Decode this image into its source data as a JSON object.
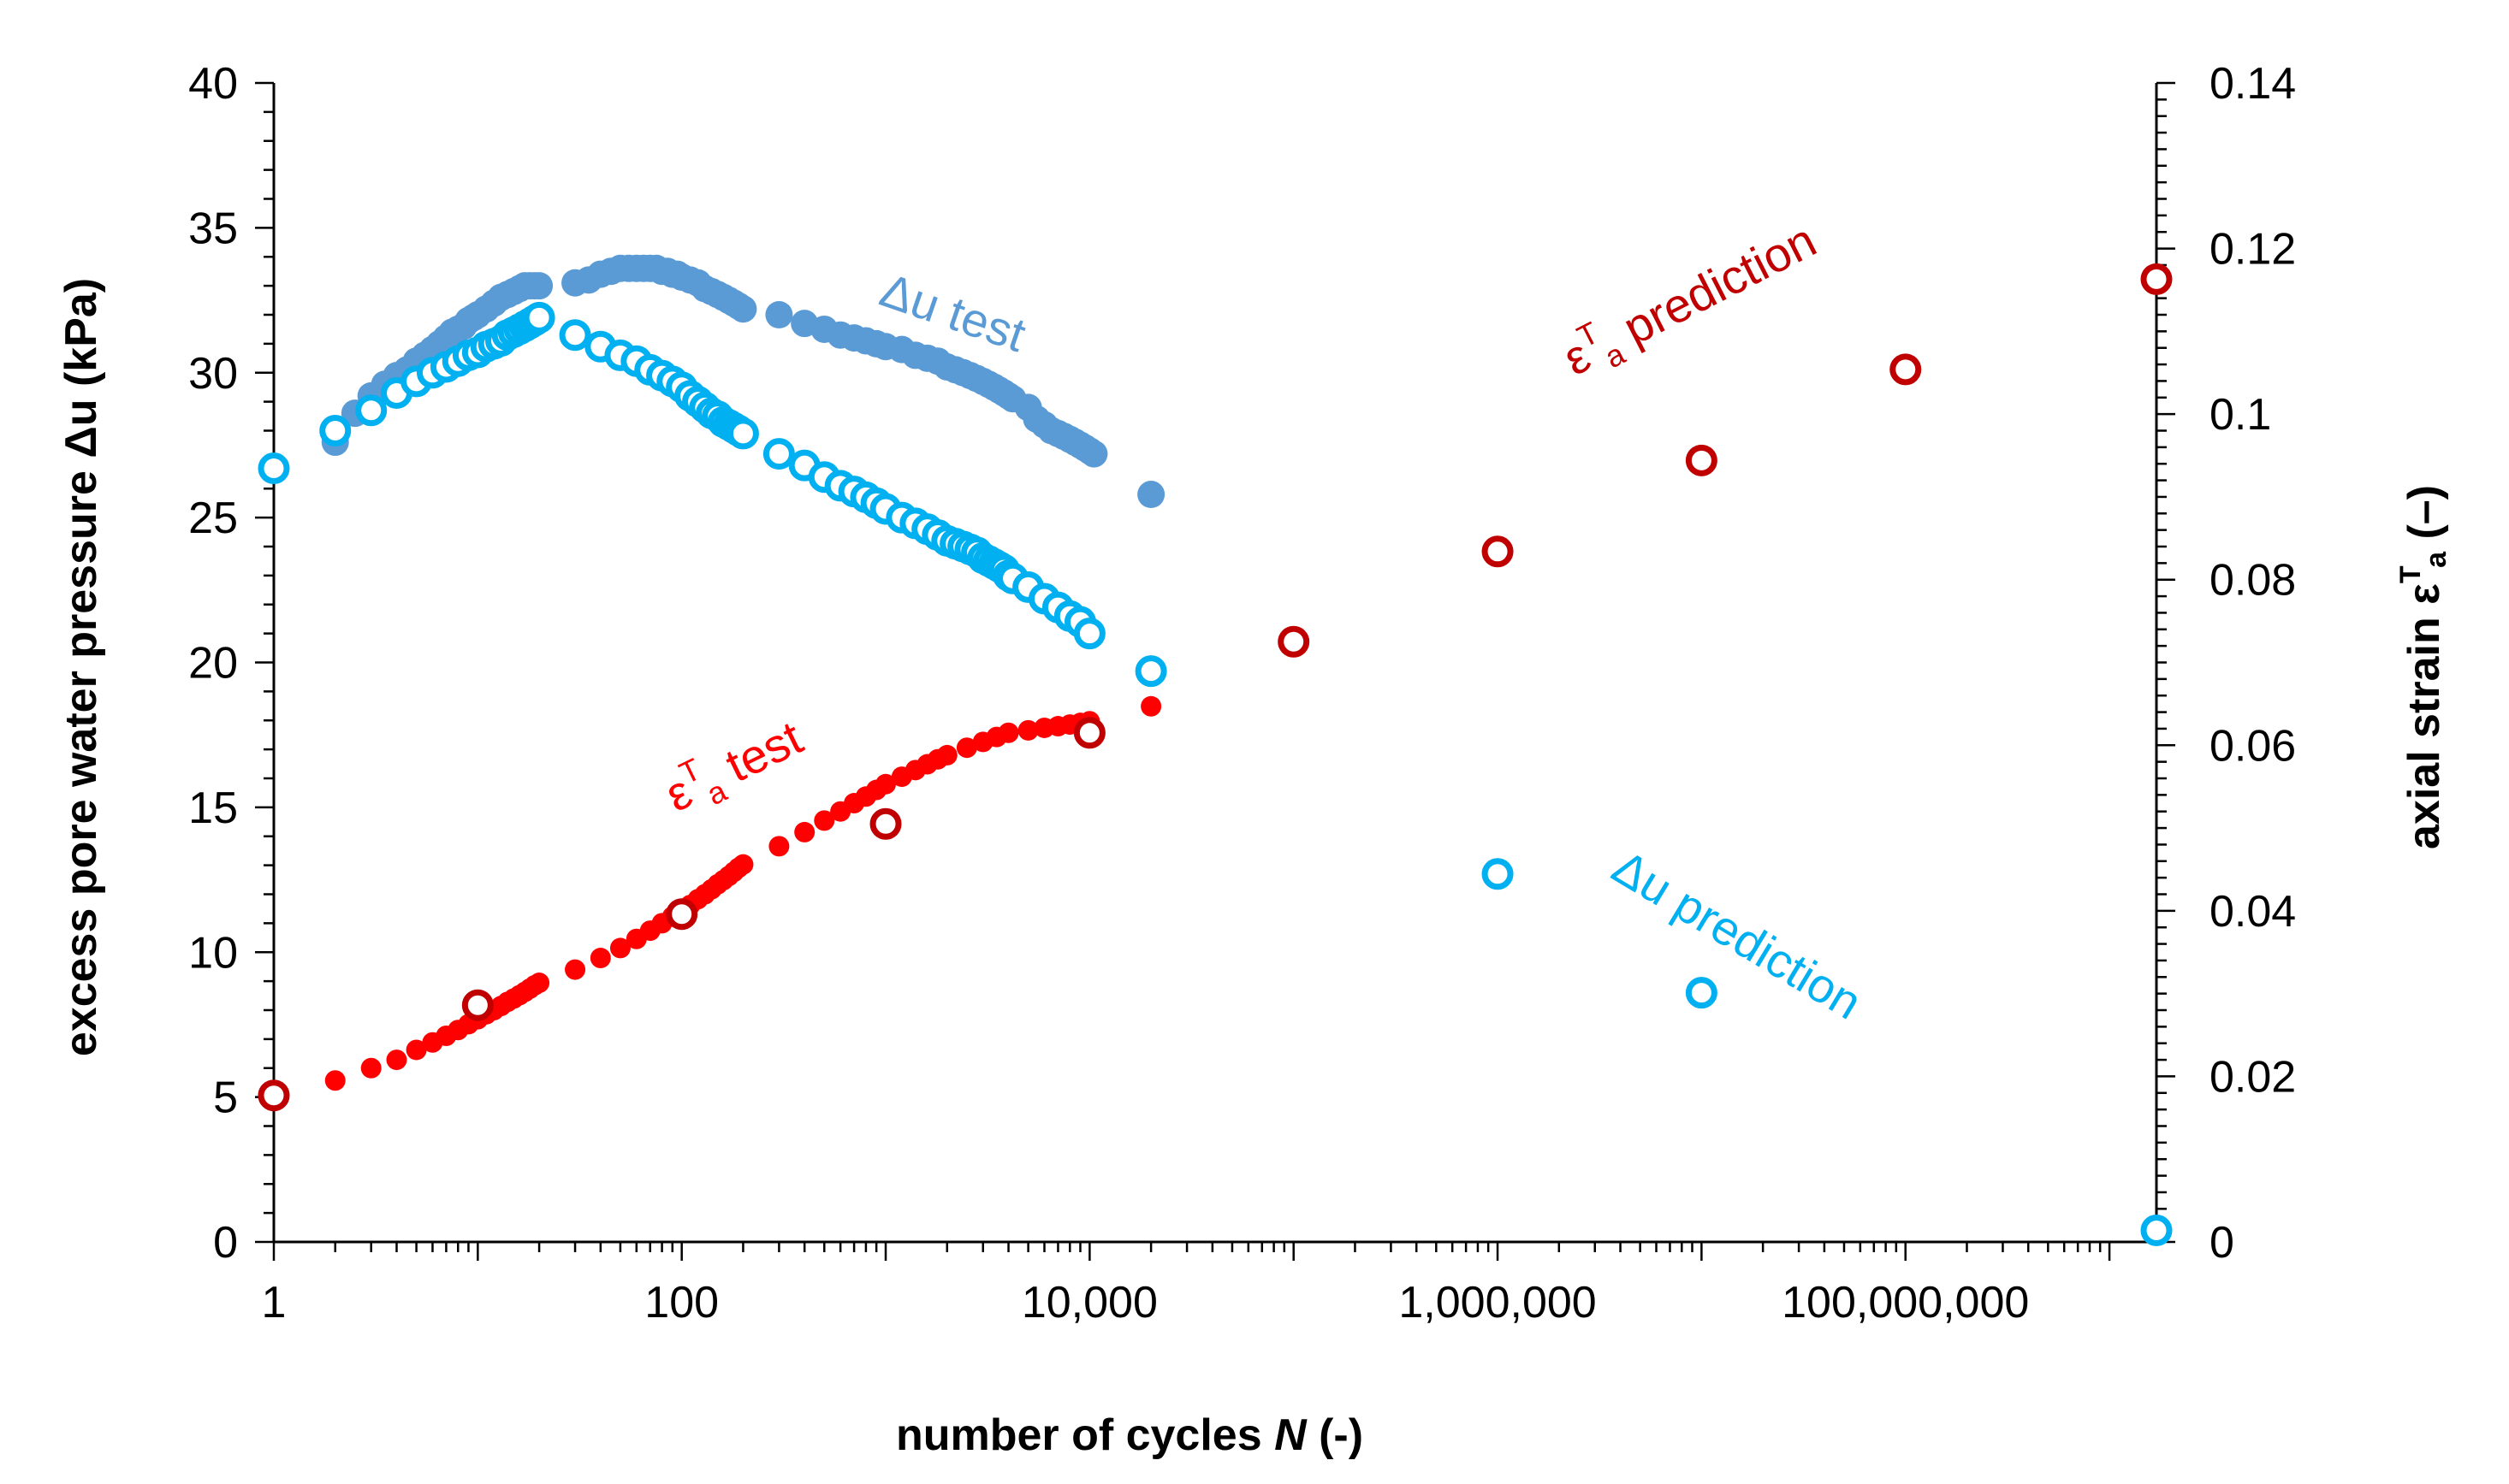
{
  "chart_data": {
    "type": "scatter",
    "xscale": "log",
    "xlabel": "number of cycles N (-)",
    "xlabel_parts": {
      "before": "number of cycles ",
      "var": "N",
      "after": " (-)"
    },
    "ylabel_left": "excess pore water pressure Δu (kPa)",
    "ylabel_right": "axial strain εTa (–)",
    "ylabel_right_parts": {
      "before": "axial strain ",
      "sym": "ε",
      "sup": "T",
      "sub": "a",
      "after": " (–)"
    },
    "xlim": [
      1,
      1700000000
    ],
    "ylim_left": [
      0,
      40
    ],
    "ylim_right": [
      0,
      0.14
    ],
    "x_ticks": [
      {
        "value": 1,
        "label": "1"
      },
      {
        "value": 100,
        "label": "100"
      },
      {
        "value": 10000,
        "label": "10,000"
      },
      {
        "value": 1000000,
        "label": "1,000,000"
      },
      {
        "value": 100000000,
        "label": "100,000,000"
      }
    ],
    "y_left_ticks": [
      {
        "value": 0,
        "label": "0"
      },
      {
        "value": 5,
        "label": "5"
      },
      {
        "value": 10,
        "label": "10"
      },
      {
        "value": 15,
        "label": "15"
      },
      {
        "value": 20,
        "label": "20"
      },
      {
        "value": 25,
        "label": "25"
      },
      {
        "value": 30,
        "label": "30"
      },
      {
        "value": 35,
        "label": "35"
      },
      {
        "value": 40,
        "label": "40"
      }
    ],
    "y_right_ticks": [
      {
        "value": 0,
        "label": "0"
      },
      {
        "value": 0.02,
        "label": "0.02"
      },
      {
        "value": 0.04,
        "label": "0.04"
      },
      {
        "value": 0.06,
        "label": "0.06"
      },
      {
        "value": 0.08,
        "label": "0.08"
      },
      {
        "value": 0.1,
        "label": "0.1"
      },
      {
        "value": 0.12,
        "label": "0.12"
      },
      {
        "value": 0.14,
        "label": "0.14"
      }
    ],
    "series": [
      {
        "name": "Δu test",
        "axis": "left",
        "marker": "filled",
        "color": "#5b9bd5",
        "x": [
          2,
          2,
          2.5,
          3,
          3.5,
          4,
          4.5,
          5,
          5.5,
          6,
          6.5,
          7,
          7.5,
          8,
          8.5,
          9,
          9.5,
          10,
          11,
          12,
          13,
          14,
          15,
          16,
          17,
          18,
          19,
          20,
          30,
          35,
          40,
          45,
          50,
          55,
          60,
          65,
          70,
          75,
          80,
          85,
          90,
          95,
          100,
          110,
          120,
          130,
          140,
          150,
          160,
          170,
          180,
          190,
          200,
          300,
          400,
          500,
          600,
          700,
          800,
          900,
          1000,
          1200,
          1400,
          1600,
          1800,
          2000,
          2200,
          2400,
          2600,
          2800,
          3000,
          3200,
          3400,
          3600,
          3800,
          4000,
          4200,
          5000,
          5500,
          6000,
          6500,
          7000,
          7500,
          8000,
          8500,
          9000,
          9500,
          10000,
          10500,
          20000
        ],
        "y": [
          27.6,
          27.8,
          28.6,
          29.2,
          29.6,
          29.9,
          30.1,
          30.4,
          30.6,
          30.8,
          31.0,
          31.2,
          31.4,
          31.5,
          31.6,
          31.8,
          31.9,
          32.0,
          32.2,
          32.4,
          32.6,
          32.7,
          32.8,
          32.9,
          33.0,
          33.0,
          33.0,
          33.0,
          33.1,
          33.2,
          33.4,
          33.5,
          33.6,
          33.6,
          33.6,
          33.6,
          33.6,
          33.6,
          33.5,
          33.5,
          33.4,
          33.4,
          33.3,
          33.2,
          33.1,
          32.9,
          32.8,
          32.7,
          32.6,
          32.5,
          32.4,
          32.3,
          32.2,
          32.0,
          31.7,
          31.5,
          31.3,
          31.2,
          31.1,
          31.0,
          30.9,
          30.8,
          30.6,
          30.5,
          30.4,
          30.2,
          30.1,
          30.0,
          29.9,
          29.8,
          29.7,
          29.6,
          29.5,
          29.4,
          29.3,
          29.2,
          29.1,
          28.8,
          28.4,
          28.2,
          28.0,
          27.9,
          27.8,
          27.7,
          27.6,
          27.5,
          27.4,
          27.3,
          27.2,
          25.8
        ]
      },
      {
        "name": "Δu prediction",
        "axis": "left",
        "marker": "open",
        "color": "#00b0f0",
        "x": [
          1,
          2,
          3,
          4,
          5,
          6,
          7,
          8,
          9,
          10,
          11,
          12,
          13,
          14,
          15,
          16,
          17,
          18,
          19,
          20,
          30,
          40,
          50,
          60,
          70,
          80,
          90,
          100,
          110,
          120,
          130,
          140,
          150,
          160,
          170,
          180,
          190,
          200,
          300,
          400,
          500,
          600,
          700,
          800,
          900,
          1000,
          1200,
          1400,
          1600,
          1800,
          2000,
          2200,
          2400,
          2600,
          2800,
          3000,
          3200,
          3400,
          3600,
          3800,
          4000,
          4200,
          5000,
          6000,
          7000,
          8000,
          9000,
          10000,
          20000,
          1000000,
          10000000,
          1700000000
        ],
        "y": [
          26.7,
          28.0,
          28.7,
          29.3,
          29.7,
          30.0,
          30.2,
          30.4,
          30.6,
          30.7,
          30.9,
          31.0,
          31.1,
          31.3,
          31.4,
          31.5,
          31.6,
          31.7,
          31.8,
          31.9,
          31.3,
          30.9,
          30.6,
          30.4,
          30.1,
          29.9,
          29.7,
          29.5,
          29.2,
          29.0,
          28.8,
          28.6,
          28.5,
          28.3,
          28.2,
          28.1,
          28.0,
          27.9,
          27.2,
          26.8,
          26.4,
          26.1,
          25.9,
          25.7,
          25.5,
          25.3,
          25.0,
          24.8,
          24.6,
          24.4,
          24.2,
          24.1,
          24.0,
          23.9,
          23.8,
          23.6,
          23.5,
          23.4,
          23.3,
          23.2,
          23.0,
          22.9,
          22.6,
          22.2,
          21.9,
          21.6,
          21.4,
          21.0,
          19.7,
          12.7,
          8.6,
          0.4
        ]
      },
      {
        "name": "εTa test",
        "axis": "right",
        "marker": "filled",
        "color": "#ff0000",
        "x": [
          2,
          3,
          4,
          5,
          6,
          7,
          8,
          9,
          10,
          11,
          12,
          13,
          14,
          15,
          16,
          17,
          18,
          19,
          20,
          30,
          40,
          50,
          60,
          70,
          80,
          90,
          100,
          110,
          120,
          130,
          140,
          150,
          160,
          170,
          180,
          190,
          200,
          300,
          400,
          500,
          600,
          700,
          800,
          900,
          1000,
          1200,
          1400,
          1600,
          1800,
          2000,
          2500,
          3000,
          3500,
          4000,
          5000,
          6000,
          7000,
          8000,
          9000,
          10000,
          20000
        ],
        "y": [
          0.0195,
          0.021,
          0.022,
          0.0232,
          0.0241,
          0.0249,
          0.0256,
          0.0263,
          0.0269,
          0.0275,
          0.028,
          0.0285,
          0.029,
          0.0294,
          0.0298,
          0.0302,
          0.0306,
          0.031,
          0.0313,
          0.0329,
          0.0343,
          0.0355,
          0.0366,
          0.0376,
          0.0385,
          0.0393,
          0.04,
          0.0407,
          0.0414,
          0.042,
          0.0426,
          0.0432,
          0.0437,
          0.0442,
          0.0447,
          0.0452,
          0.0456,
          0.0478,
          0.0495,
          0.0509,
          0.052,
          0.053,
          0.0538,
          0.0546,
          0.0553,
          0.0562,
          0.057,
          0.0577,
          0.0583,
          0.0588,
          0.0597,
          0.0604,
          0.061,
          0.0615,
          0.0618,
          0.0621,
          0.0623,
          0.0625,
          0.0627,
          0.0629,
          0.0647
        ]
      },
      {
        "name": "εTa prediction",
        "axis": "right",
        "marker": "open",
        "color": "#c00000",
        "x": [
          1,
          10,
          100,
          1000,
          10000,
          100000,
          1000000,
          10000000,
          100000000,
          1700000000
        ],
        "y": [
          0.0177,
          0.0286,
          0.0396,
          0.0505,
          0.0615,
          0.0725,
          0.0834,
          0.0944,
          0.1054,
          0.1163
        ]
      }
    ],
    "annotations": [
      {
        "id": "du_test",
        "text": "Δu test",
        "color": "#5b9bd5"
      },
      {
        "id": "du_pred",
        "text": "Δu prediction",
        "color": "#00b0f0"
      },
      {
        "id": "eps_test",
        "sym": "ε",
        "sup": "T",
        "sub": "a",
        "rest": " test",
        "color": "#ff0000"
      },
      {
        "id": "eps_pred",
        "sym": "ε",
        "sup": "T",
        "sub": "a",
        "rest": " prediction",
        "color": "#c00000"
      }
    ]
  }
}
